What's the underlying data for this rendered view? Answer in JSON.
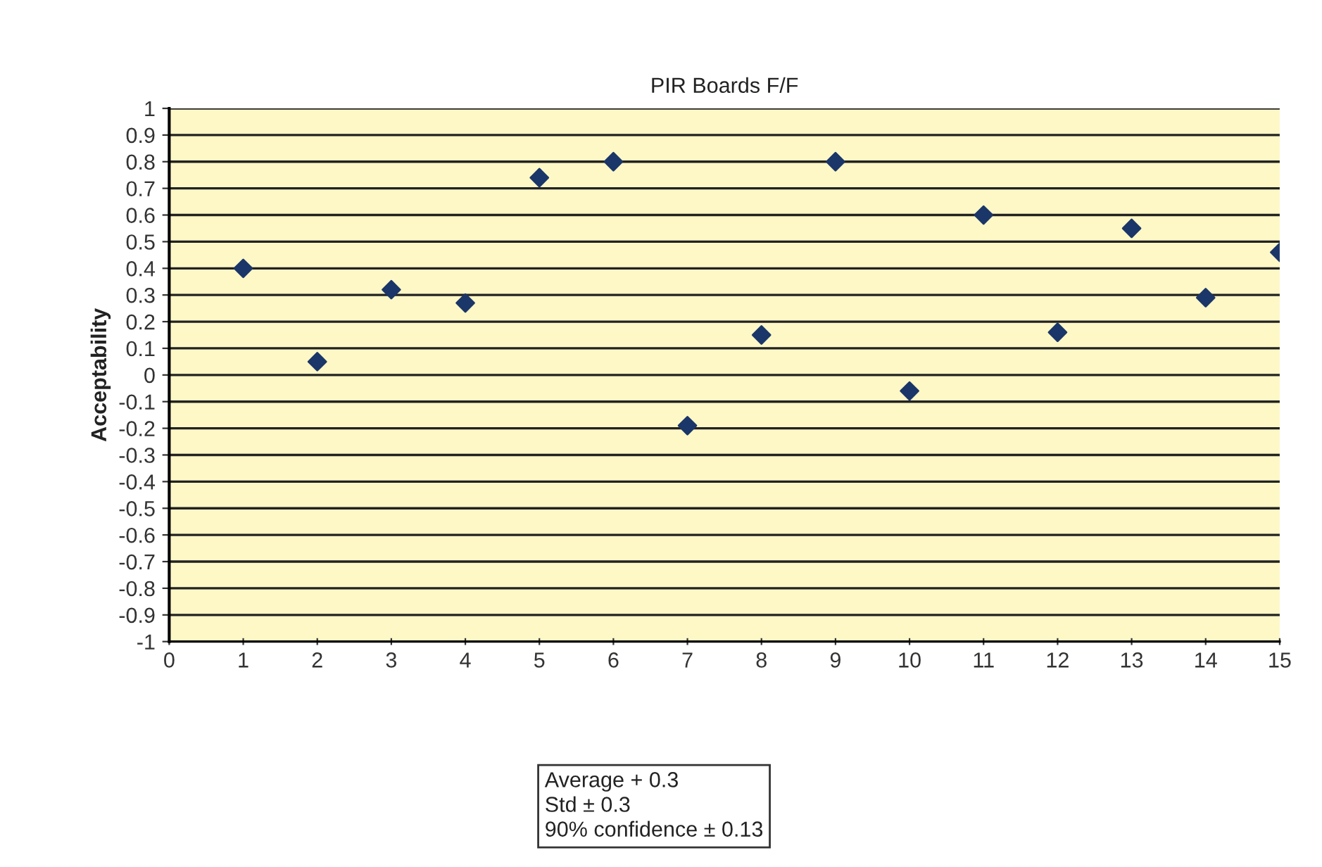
{
  "chart_data": {
    "type": "scatter",
    "title": "PIR Boards F/F",
    "ylabel": "Acceptability",
    "x": [
      1,
      2,
      3,
      4,
      5,
      6,
      7,
      8,
      9,
      10,
      11,
      12,
      13,
      14,
      15
    ],
    "series": [
      {
        "color": "#1b3669",
        "values": [
          0.4,
          0.05,
          0.32,
          0.27,
          0.74,
          0.8,
          -0.19,
          0.15,
          0.8,
          -0.06,
          0.6,
          0.16,
          0.55,
          0.29,
          0.46
        ]
      }
    ],
    "xlim": [
      0,
      15
    ],
    "xticks": [
      0,
      1,
      2,
      3,
      4,
      5,
      6,
      7,
      8,
      9,
      10,
      11,
      12,
      13,
      14,
      15
    ],
    "ylim": [
      -1,
      1
    ],
    "yticks": [
      -1,
      -0.9,
      -0.8,
      -0.7,
      -0.6,
      -0.5,
      -0.4,
      -0.3,
      -0.2,
      -0.1,
      0,
      0.1,
      0.2,
      0.3,
      0.4,
      0.5,
      0.6,
      0.7,
      0.8,
      0.9,
      1
    ],
    "grid": "y",
    "marker": "diamond",
    "legend": false,
    "annotations": [
      "Average + 0.3",
      "Std ± 0.3",
      "90% confidence ± 0.13"
    ]
  }
}
